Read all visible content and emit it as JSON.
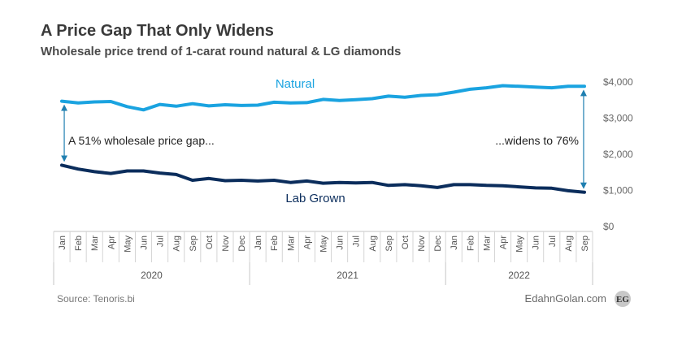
{
  "header": {
    "title": "A Price Gap That Only Widens",
    "subtitle": "Wholesale price trend of 1-carat round natural & LG diamonds"
  },
  "chart_data": {
    "type": "line",
    "x": [
      "Jan",
      "Feb",
      "Mar",
      "Apr",
      "May",
      "Jun",
      "Jul",
      "Aug",
      "Sep",
      "Oct",
      "Nov",
      "Dec",
      "Jan",
      "Feb",
      "Mar",
      "Apr",
      "May",
      "Jun",
      "Jul",
      "Aug",
      "Sep",
      "Oct",
      "Nov",
      "Dec",
      "Jan",
      "Feb",
      "Mar",
      "Apr",
      "May",
      "Jun",
      "Jul",
      "Aug",
      "Sep"
    ],
    "years": [
      {
        "label": "2020",
        "months": 12
      },
      {
        "label": "2021",
        "months": 12
      },
      {
        "label": "2022",
        "months": 9
      }
    ],
    "ylim": [
      0,
      4000
    ],
    "yticks": [
      0,
      1000,
      2000,
      3000,
      4000
    ],
    "ytick_labels": [
      "$0",
      "$1,000",
      "$2,000",
      "$3,000",
      "$4,000"
    ],
    "series": [
      {
        "name": "Natural",
        "color": "#1aa3e0",
        "values": [
          3470,
          3420,
          3450,
          3460,
          3320,
          3230,
          3380,
          3330,
          3400,
          3340,
          3370,
          3350,
          3360,
          3440,
          3420,
          3430,
          3520,
          3490,
          3510,
          3540,
          3610,
          3580,
          3630,
          3650,
          3720,
          3800,
          3840,
          3900,
          3880,
          3860,
          3840,
          3880,
          3880
        ]
      },
      {
        "name": "Lab Grown",
        "color": "#0b2d5c",
        "values": [
          1700,
          1590,
          1520,
          1470,
          1540,
          1540,
          1480,
          1440,
          1280,
          1330,
          1270,
          1280,
          1260,
          1280,
          1220,
          1260,
          1200,
          1220,
          1210,
          1220,
          1140,
          1160,
          1130,
          1080,
          1160,
          1160,
          1140,
          1130,
          1100,
          1070,
          1060,
          990,
          950
        ]
      }
    ],
    "annotations": {
      "left": "A 51% wholesale price gap...",
      "right": "...widens to 76%"
    },
    "grid": false
  },
  "footer": {
    "source": "Source: Tenoris.bi",
    "brand": "EdahnGolan.com",
    "badge": "EG"
  }
}
